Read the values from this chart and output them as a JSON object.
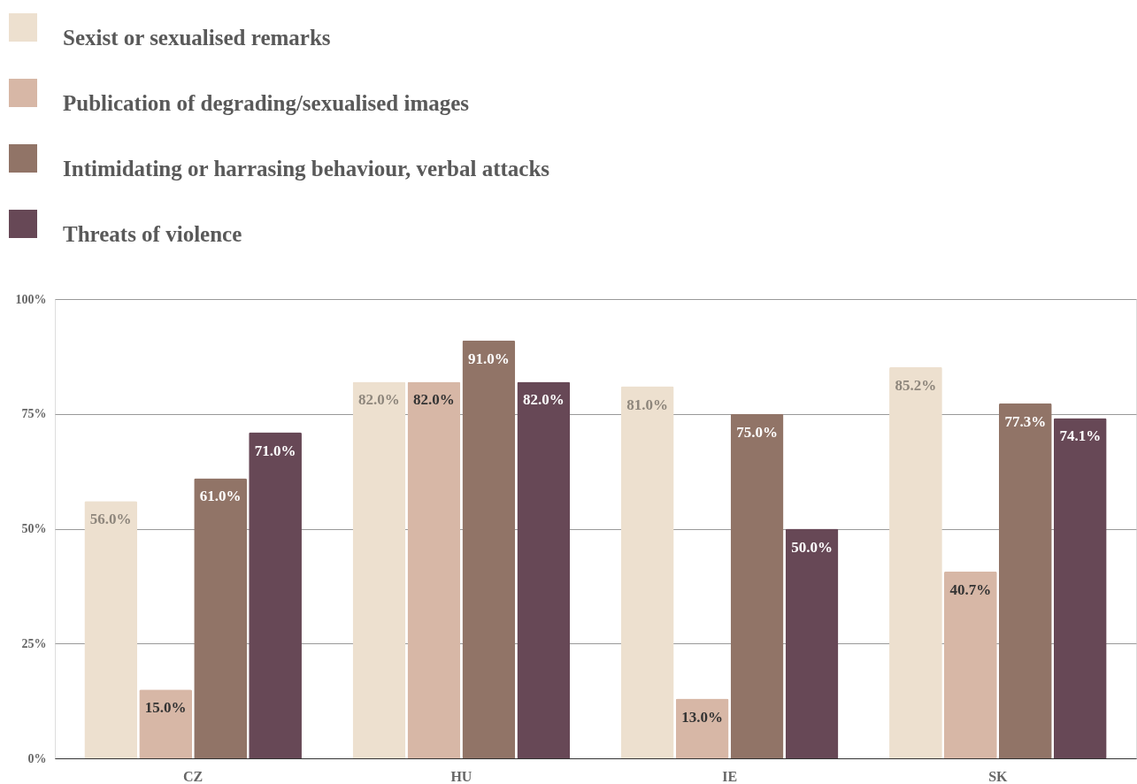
{
  "chart_data": {
    "type": "bar",
    "categories": [
      "CZ",
      "HU",
      "IE",
      "SK"
    ],
    "series": [
      {
        "name": "Sexist or sexualised remarks",
        "color": "#ede0cf",
        "values": [
          56.0,
          82.0,
          81.0,
          85.2
        ],
        "value_labels": [
          "56.0%",
          "82.0%",
          "81.0%",
          "85.2%"
        ]
      },
      {
        "name": "Publication of degrading/sexualised images",
        "color": "#d7b7a6",
        "values": [
          15.0,
          82.0,
          13.0,
          40.7
        ],
        "value_labels": [
          "15.0%",
          "82.0%",
          "13.0%",
          "40.7%"
        ]
      },
      {
        "name": "Intimidating or harrasing behaviour, verbal attacks",
        "color": "#917467",
        "values": [
          61.0,
          91.0,
          75.0,
          77.3
        ],
        "value_labels": [
          "61.0%",
          "91.0%",
          "75.0%",
          "77.3%"
        ]
      },
      {
        "name": "Threats of violence",
        "color": "#674856",
        "values": [
          71.0,
          82.0,
          50.0,
          74.1
        ],
        "value_labels": [
          "71.0%",
          "82.0%",
          "50.0%",
          "74.1%"
        ]
      }
    ],
    "ylim": [
      0,
      100
    ],
    "yticks": [
      {
        "value": 0,
        "label": "0%"
      },
      {
        "value": 25,
        "label": "25%"
      },
      {
        "value": 50,
        "label": "50%"
      },
      {
        "value": 75,
        "label": "75%"
      },
      {
        "value": 100,
        "label": "100%"
      }
    ],
    "grid": "y",
    "legend": "top left"
  }
}
